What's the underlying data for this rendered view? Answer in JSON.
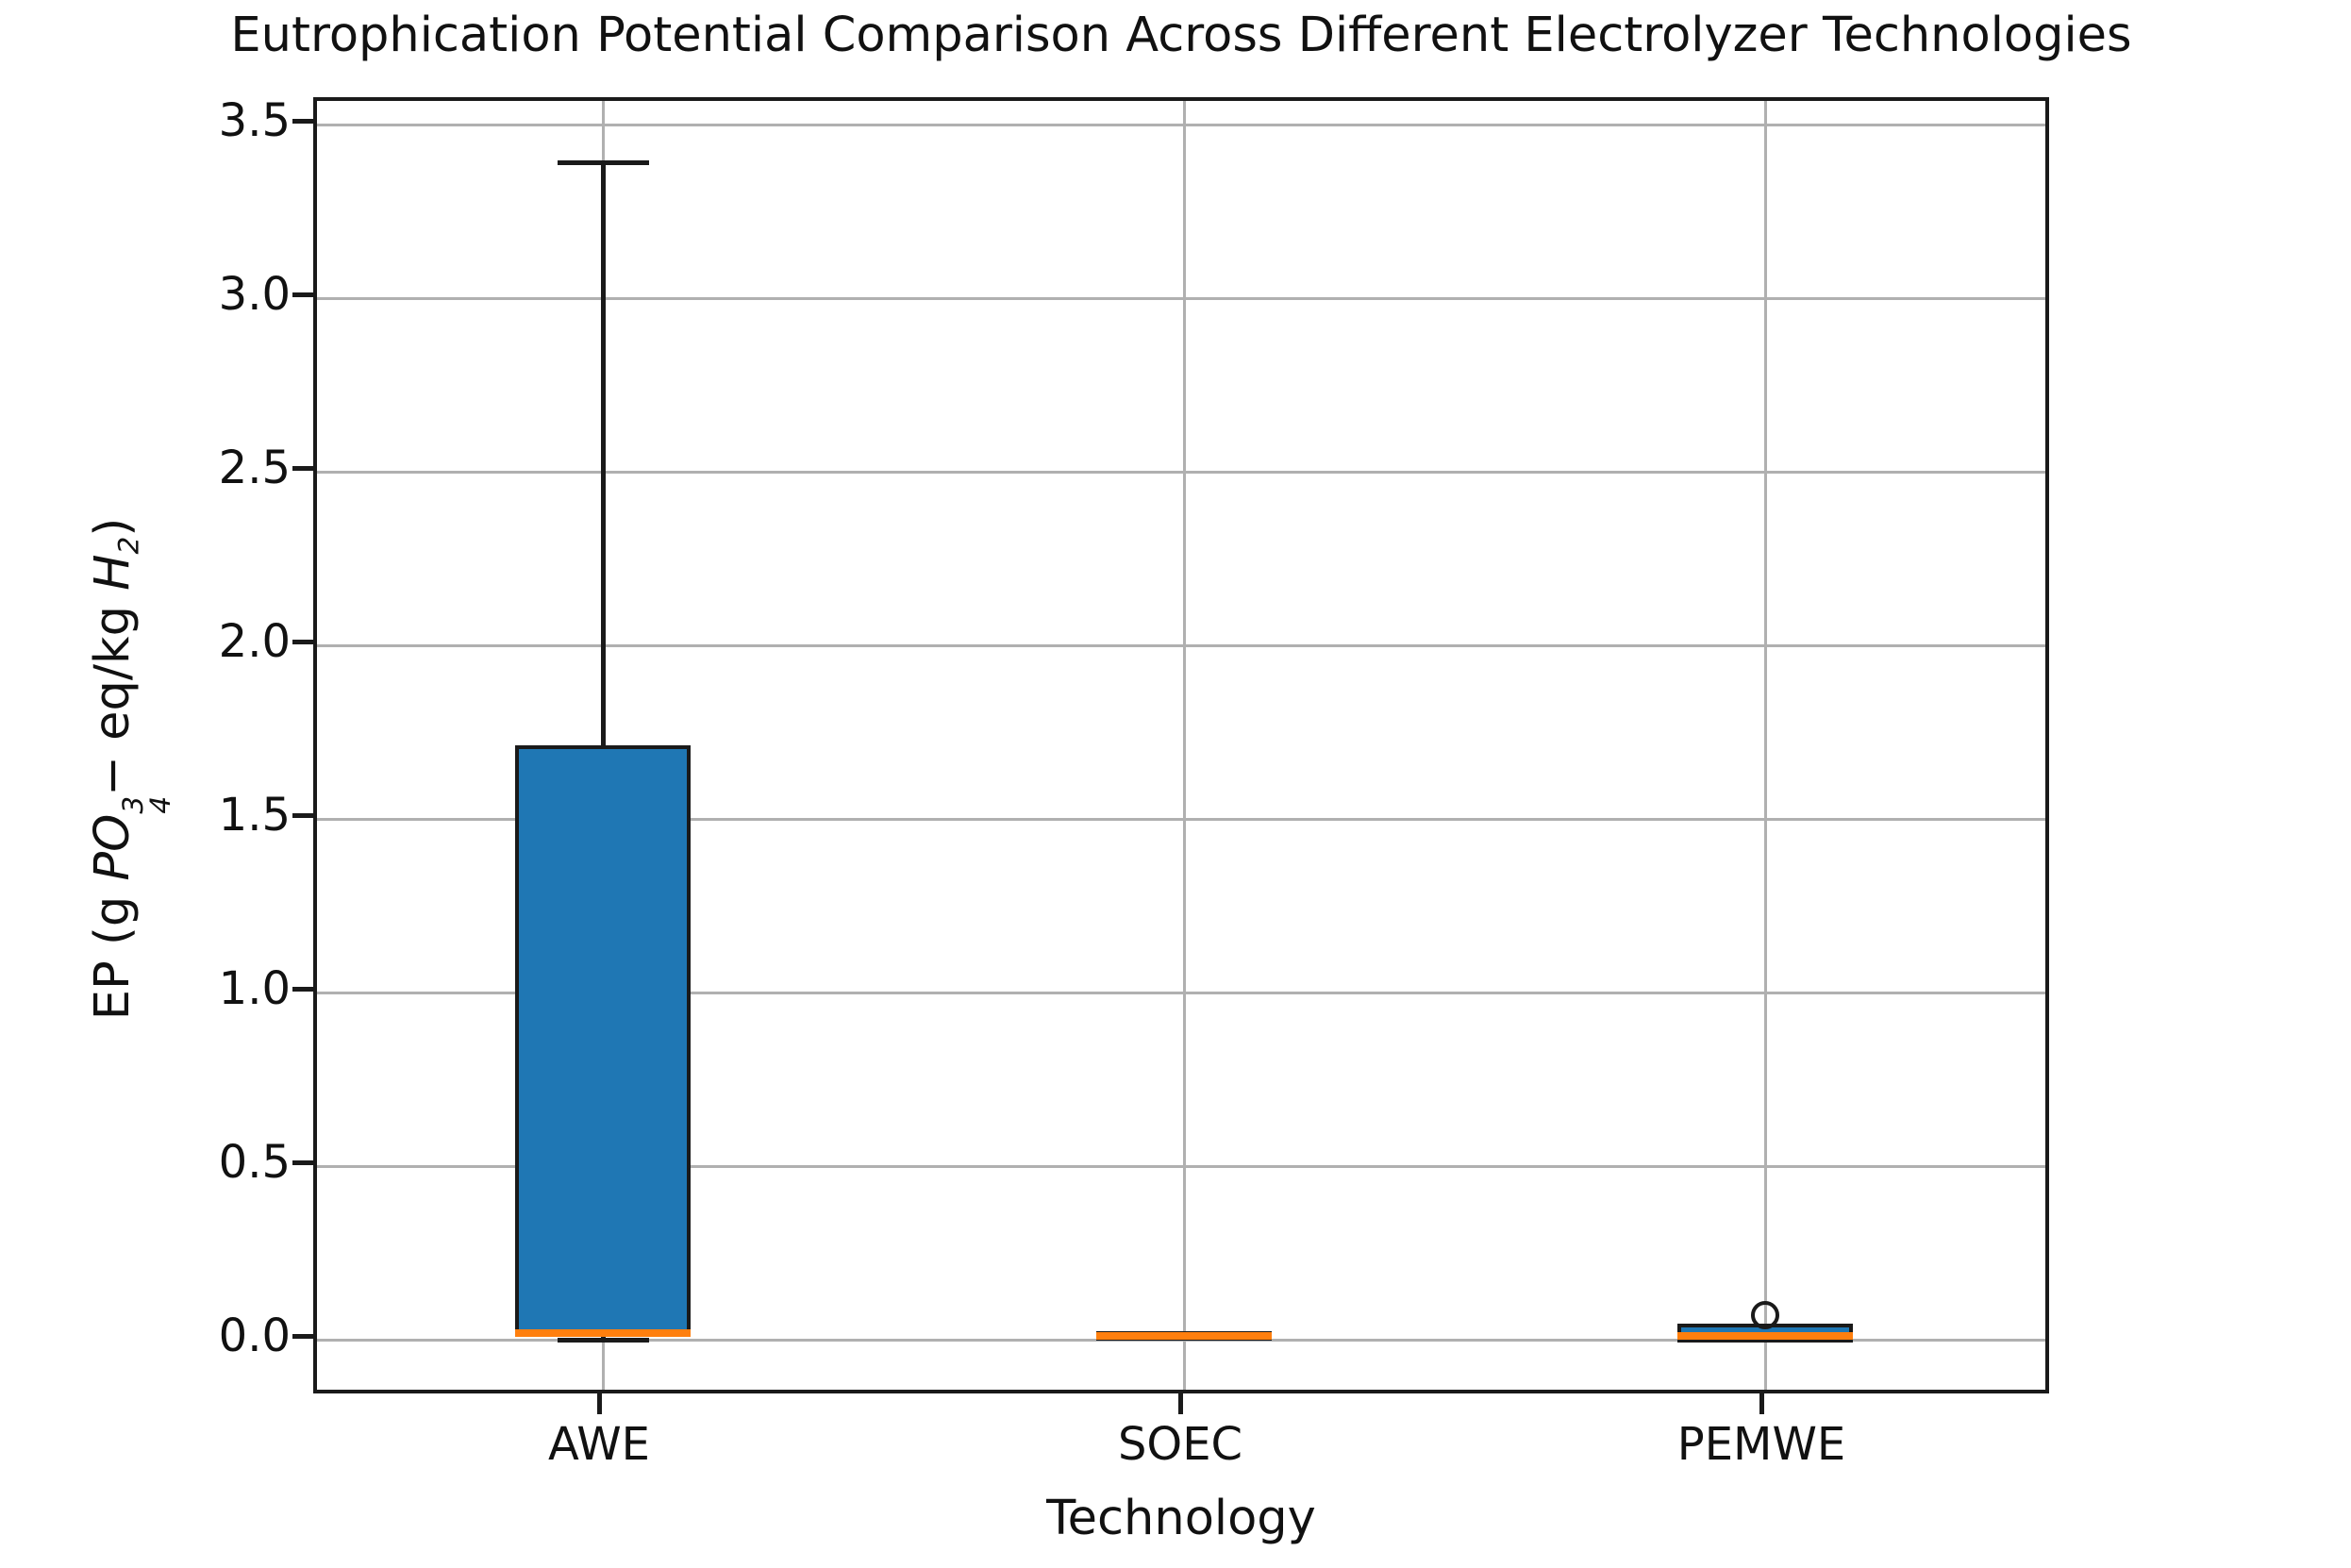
{
  "figure": {
    "title": "Eutrophication Potential Comparison Across Different Electrolyzer Technologies",
    "x_label": "Technology",
    "y_label": {
      "pre": "EP (g ",
      "chem": "PO",
      "sup": "3",
      "sub": "4",
      "dash": "−",
      "units": " eq/kg ",
      "h": "H",
      "h_sub": "2",
      "close": ")"
    }
  },
  "axes": {
    "y_ticks": [
      {
        "value": 3.5,
        "label": "3.5"
      },
      {
        "value": 3.0,
        "label": "3.0"
      },
      {
        "value": 2.5,
        "label": "2.5"
      },
      {
        "value": 2.0,
        "label": "2.0"
      },
      {
        "value": 1.5,
        "label": "1.5"
      },
      {
        "value": 1.0,
        "label": "1.0"
      },
      {
        "value": 0.5,
        "label": "0.5"
      },
      {
        "value": 0.0,
        "label": "0.0"
      }
    ],
    "x_ticks": [
      "AWE",
      "SOEC",
      "PEMWE"
    ]
  },
  "colors": {
    "box_fill": "#1f77b4",
    "median": "#ff7f0e",
    "grid": "#b0b0b0",
    "line": "#1a1a1a",
    "background": "#ffffff"
  },
  "chart_data": {
    "type": "boxplot",
    "title": "Eutrophication Potential Comparison Across Different Electrolyzer Technologies",
    "xlabel": "Technology",
    "ylabel": "EP (g PO4^3- eq/kg H2)",
    "categories": [
      "AWE",
      "SOEC",
      "PEMWE"
    ],
    "ylim": [
      -0.17,
      3.57
    ],
    "y_tick_values": [
      0.0,
      0.5,
      1.0,
      1.5,
      2.0,
      2.5,
      3.0,
      3.5
    ],
    "grid": true,
    "legend": false,
    "series": [
      {
        "name": "AWE",
        "whislo": 0.0,
        "q1": 0.02,
        "med": 0.02,
        "q3": 1.7,
        "whishi": 3.39,
        "fliers": []
      },
      {
        "name": "SOEC",
        "whislo": 0.004,
        "q1": 0.007,
        "med": 0.01,
        "q3": 0.013,
        "whishi": 0.016,
        "fliers": []
      },
      {
        "name": "PEMWE",
        "whislo": 0.0,
        "q1": 0.002,
        "med": 0.012,
        "q3": 0.035,
        "whishi": 0.04,
        "fliers": [
          0.07
        ]
      }
    ]
  }
}
